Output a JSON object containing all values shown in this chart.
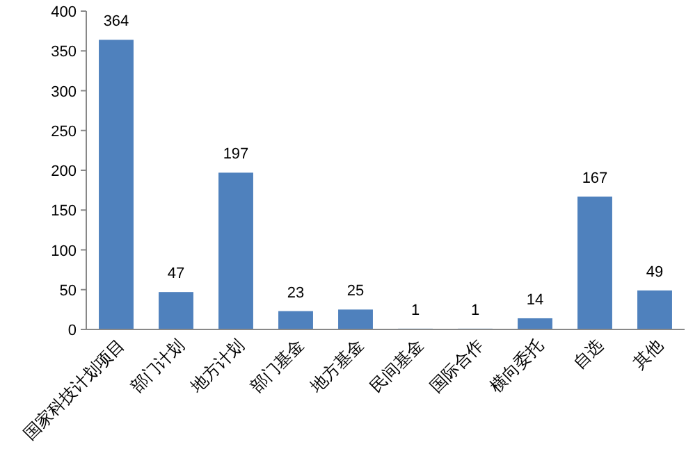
{
  "chart_data": {
    "type": "bar",
    "categories": [
      "国家科技计划项目",
      "部门计划",
      "地方计划",
      "部门基金",
      "地方基金",
      "民间基金",
      "国际合作",
      "横向委托",
      "自选",
      "其他"
    ],
    "values": [
      364,
      47,
      197,
      23,
      25,
      1,
      1,
      14,
      167,
      49
    ],
    "color": "#4f81bd",
    "ylim": [
      0,
      400
    ],
    "yticks": [
      0,
      50,
      100,
      150,
      200,
      250,
      300,
      350,
      400
    ],
    "data_labels": true
  }
}
